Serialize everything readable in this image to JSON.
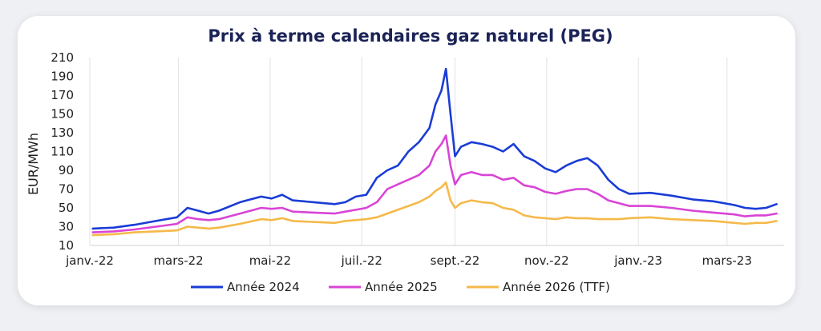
{
  "chart_data": {
    "type": "line",
    "title": "Prix à terme calendaires gaz naturel (PEG)",
    "ylabel": "EUR/MWh",
    "xlabel": "",
    "ylim": [
      10,
      210
    ],
    "yticks": [
      10,
      30,
      50,
      70,
      90,
      110,
      130,
      150,
      170,
      190,
      210
    ],
    "xticks": [
      "janv.-22",
      "mars-22",
      "mai-22",
      "juil.-22",
      "sept.-22",
      "nov.-22",
      "janv.-23",
      "mars-23"
    ],
    "grid": "vertical",
    "legend": "bottom",
    "x": [
      "2022-01-03",
      "2022-01-17",
      "2022-01-31",
      "2022-02-14",
      "2022-02-28",
      "2022-03-07",
      "2022-03-14",
      "2022-03-21",
      "2022-03-28",
      "2022-04-11",
      "2022-04-25",
      "2022-05-02",
      "2022-05-09",
      "2022-05-16",
      "2022-05-30",
      "2022-06-13",
      "2022-06-20",
      "2022-06-27",
      "2022-07-04",
      "2022-07-11",
      "2022-07-18",
      "2022-07-25",
      "2022-08-01",
      "2022-08-08",
      "2022-08-15",
      "2022-08-19",
      "2022-08-23",
      "2022-08-26",
      "2022-08-29",
      "2022-09-01",
      "2022-09-05",
      "2022-09-12",
      "2022-09-19",
      "2022-09-26",
      "2022-10-03",
      "2022-10-10",
      "2022-10-17",
      "2022-10-24",
      "2022-10-31",
      "2022-11-07",
      "2022-11-14",
      "2022-11-21",
      "2022-11-28",
      "2022-12-05",
      "2022-12-12",
      "2022-12-19",
      "2022-12-26",
      "2023-01-09",
      "2023-01-23",
      "2023-02-06",
      "2023-02-20",
      "2023-03-06",
      "2023-03-13",
      "2023-03-20",
      "2023-03-27",
      "2023-04-03"
    ],
    "series": [
      {
        "name": "Année 2024",
        "color": "#1a3cd6",
        "values": [
          28,
          29,
          32,
          36,
          40,
          50,
          47,
          44,
          47,
          56,
          62,
          60,
          64,
          58,
          56,
          54,
          56,
          62,
          64,
          82,
          90,
          95,
          110,
          120,
          135,
          160,
          175,
          198,
          150,
          105,
          115,
          120,
          118,
          115,
          110,
          118,
          105,
          100,
          92,
          88,
          95,
          100,
          103,
          95,
          80,
          70,
          65,
          66,
          63,
          59,
          57,
          53,
          50,
          49,
          50,
          54
        ]
      },
      {
        "name": "Année 2025",
        "color": "#d944d6",
        "values": [
          24,
          25,
          27,
          30,
          33,
          40,
          38,
          37,
          38,
          44,
          50,
          49,
          50,
          46,
          45,
          44,
          46,
          48,
          50,
          56,
          70,
          75,
          80,
          85,
          95,
          110,
          118,
          127,
          95,
          75,
          85,
          88,
          85,
          85,
          80,
          82,
          74,
          72,
          67,
          65,
          68,
          70,
          70,
          65,
          58,
          55,
          52,
          52,
          50,
          47,
          45,
          43,
          41,
          42,
          42,
          44
        ]
      },
      {
        "name": "Année 2026 (TTF)",
        "color": "#f5b94a",
        "values": [
          21,
          22,
          24,
          25,
          26,
          30,
          29,
          28,
          29,
          33,
          38,
          37,
          39,
          36,
          35,
          34,
          36,
          37,
          38,
          40,
          44,
          48,
          52,
          56,
          62,
          68,
          72,
          77,
          58,
          50,
          55,
          58,
          56,
          55,
          50,
          48,
          42,
          40,
          39,
          38,
          40,
          39,
          39,
          38,
          38,
          38,
          39,
          40,
          38,
          37,
          36,
          34,
          33,
          34,
          34,
          36
        ]
      }
    ]
  }
}
